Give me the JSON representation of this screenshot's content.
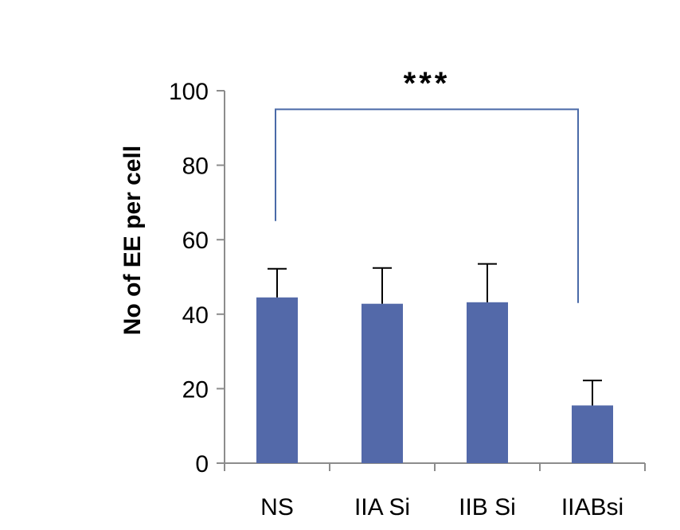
{
  "chart_data": {
    "type": "bar",
    "categories": [
      "NS",
      "IIA Si",
      "IIB Si",
      "IIABsi"
    ],
    "values": [
      44.5,
      42.8,
      43.2,
      15.5
    ],
    "error_upper": [
      52.2,
      52.4,
      53.5,
      22.2
    ],
    "ylabel": "No of EE per cell",
    "xlabel": "",
    "ylim": [
      0,
      100
    ],
    "yticks": [
      0,
      20,
      40,
      60,
      80,
      100
    ],
    "significance": {
      "label": "***",
      "from_category": "NS",
      "to_category": "IIABsi",
      "bracket_value": 95,
      "left_drop_to": 65,
      "right_drop_to": 43
    },
    "bar_color": "#5369a9",
    "bracket_color": "#4a6aa8",
    "axis_color": "#8c8c8c",
    "grid": false,
    "legend": "none"
  }
}
